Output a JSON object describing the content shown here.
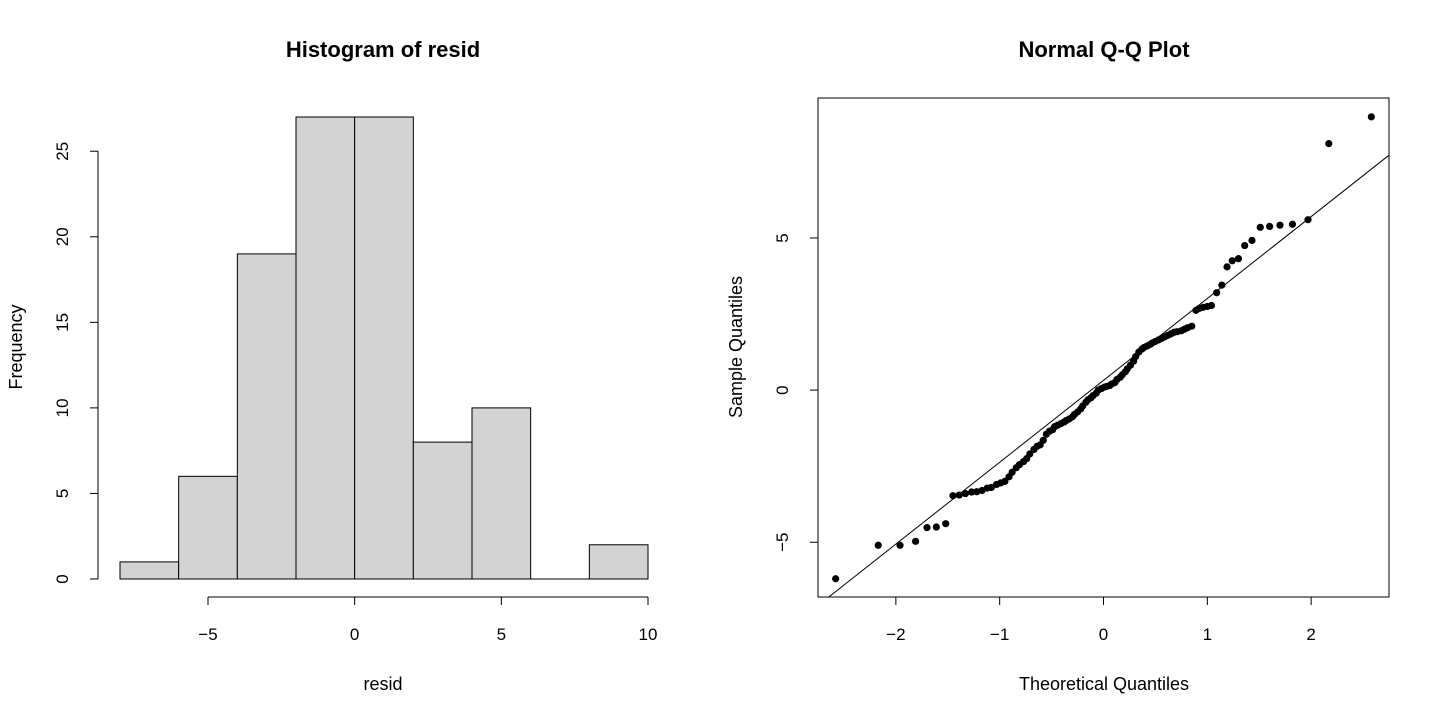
{
  "chart_data": [
    {
      "type": "bar",
      "title": "Histogram of resid",
      "xlabel": "resid",
      "ylabel": "Frequency",
      "bin_edges": [
        -8,
        -6,
        -4,
        -2,
        0,
        2,
        4,
        6,
        8,
        10
      ],
      "values": [
        1,
        6,
        19,
        27,
        27,
        8,
        10,
        0,
        2
      ],
      "xlim": [
        -8,
        10
      ],
      "ylim": [
        0,
        27
      ],
      "xticks": [
        -5,
        0,
        5,
        10
      ],
      "yticks": [
        0,
        5,
        10,
        15,
        20,
        25
      ],
      "grid": false
    },
    {
      "type": "scatter",
      "title": "Normal Q-Q Plot",
      "xlabel": "Theoretical Quantiles",
      "ylabel": "Sample Quantiles",
      "xlim": [
        -2.75,
        2.75
      ],
      "ylim": [
        -6.8,
        9.6
      ],
      "xticks": [
        -2,
        -1,
        0,
        1,
        2
      ],
      "yticks": [
        -5,
        0,
        5
      ],
      "grid": false,
      "points": [
        [
          -2.58,
          -6.2
        ],
        [
          -2.17,
          -5.1
        ],
        [
          -1.96,
          -5.1
        ],
        [
          -1.81,
          -4.97
        ],
        [
          -1.7,
          -4.52
        ],
        [
          -1.61,
          -4.5
        ],
        [
          -1.52,
          -4.39
        ],
        [
          -1.45,
          -3.47
        ],
        [
          -1.39,
          -3.45
        ],
        [
          -1.33,
          -3.4
        ],
        [
          -1.27,
          -3.35
        ],
        [
          -1.22,
          -3.34
        ],
        [
          -1.17,
          -3.3
        ],
        [
          -1.12,
          -3.22
        ],
        [
          -1.08,
          -3.2
        ],
        [
          -1.03,
          -3.1
        ],
        [
          -0.99,
          -3.05
        ],
        [
          -0.95,
          -3.0
        ],
        [
          -0.91,
          -2.85
        ],
        [
          -0.88,
          -2.7
        ],
        [
          -0.84,
          -2.55
        ],
        [
          -0.81,
          -2.45
        ],
        [
          -0.77,
          -2.35
        ],
        [
          -0.74,
          -2.25
        ],
        [
          -0.71,
          -2.1
        ],
        [
          -0.67,
          -1.95
        ],
        [
          -0.64,
          -1.85
        ],
        [
          -0.61,
          -1.8
        ],
        [
          -0.58,
          -1.65
        ],
        [
          -0.55,
          -1.45
        ],
        [
          -0.52,
          -1.35
        ],
        [
          -0.49,
          -1.3
        ],
        [
          -0.47,
          -1.2
        ],
        [
          -0.44,
          -1.15
        ],
        [
          -0.41,
          -1.1
        ],
        [
          -0.38,
          -1.05
        ],
        [
          -0.36,
          -1.0
        ],
        [
          -0.33,
          -0.95
        ],
        [
          -0.3,
          -0.88
        ],
        [
          -0.28,
          -0.8
        ],
        [
          -0.25,
          -0.72
        ],
        [
          -0.22,
          -0.62
        ],
        [
          -0.2,
          -0.52
        ],
        [
          -0.17,
          -0.4
        ],
        [
          -0.15,
          -0.32
        ],
        [
          -0.12,
          -0.25
        ],
        [
          -0.1,
          -0.18
        ],
        [
          -0.07,
          -0.1
        ],
        [
          -0.05,
          0.0
        ],
        [
          -0.02,
          0.05
        ],
        [
          0.01,
          0.1
        ],
        [
          0.03,
          0.12
        ],
        [
          0.06,
          0.15
        ],
        [
          0.08,
          0.2
        ],
        [
          0.11,
          0.25
        ],
        [
          0.13,
          0.35
        ],
        [
          0.16,
          0.42
        ],
        [
          0.18,
          0.5
        ],
        [
          0.21,
          0.6
        ],
        [
          0.23,
          0.7
        ],
        [
          0.26,
          0.82
        ],
        [
          0.29,
          0.95
        ],
        [
          0.31,
          1.1
        ],
        [
          0.34,
          1.25
        ],
        [
          0.37,
          1.35
        ],
        [
          0.39,
          1.4
        ],
        [
          0.42,
          1.45
        ],
        [
          0.45,
          1.5
        ],
        [
          0.47,
          1.55
        ],
        [
          0.5,
          1.6
        ],
        [
          0.53,
          1.65
        ],
        [
          0.56,
          1.7
        ],
        [
          0.59,
          1.75
        ],
        [
          0.62,
          1.8
        ],
        [
          0.65,
          1.85
        ],
        [
          0.68,
          1.9
        ],
        [
          0.71,
          1.92
        ],
        [
          0.75,
          1.95
        ],
        [
          0.78,
          2.0
        ],
        [
          0.81,
          2.05
        ],
        [
          0.85,
          2.1
        ],
        [
          0.89,
          2.62
        ],
        [
          0.92,
          2.68
        ],
        [
          0.96,
          2.72
        ],
        [
          1.0,
          2.75
        ],
        [
          1.04,
          2.78
        ],
        [
          1.09,
          3.2
        ],
        [
          1.14,
          3.45
        ],
        [
          1.19,
          4.05
        ],
        [
          1.24,
          4.25
        ],
        [
          1.3,
          4.32
        ],
        [
          1.36,
          4.75
        ],
        [
          1.43,
          4.92
        ],
        [
          1.51,
          5.35
        ],
        [
          1.6,
          5.38
        ],
        [
          1.7,
          5.42
        ],
        [
          1.82,
          5.45
        ],
        [
          1.97,
          5.6
        ],
        [
          2.17,
          8.1
        ],
        [
          2.58,
          8.98
        ]
      ],
      "line": [
        [
          -2.75,
          -7.08
        ],
        [
          2.75,
          7.72
        ]
      ]
    }
  ]
}
